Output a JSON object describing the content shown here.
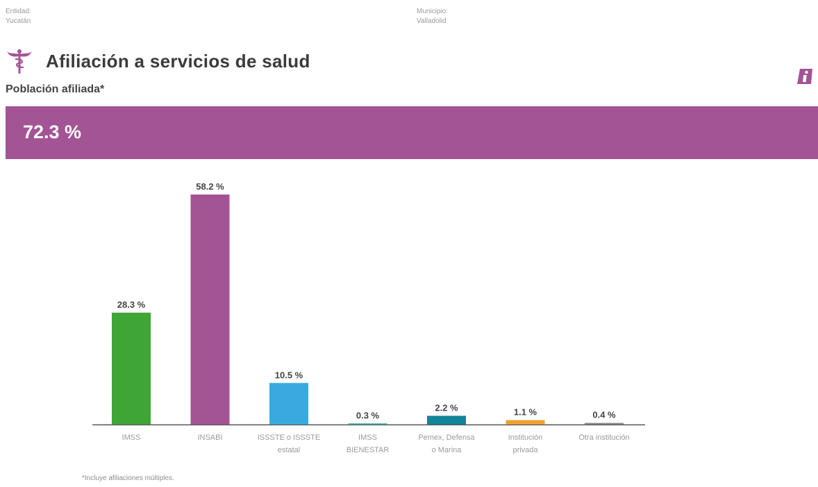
{
  "header": {
    "entidad_label": "Entidad:",
    "entidad_value": "Yucatán",
    "municipio_label": "Municipio:",
    "municipio_value": "Valladolid",
    "title": "Afiliación a servicios de salud",
    "subtitle": "Población afiliada*"
  },
  "banner": {
    "value_label": "72.3 %",
    "color": "#a35494"
  },
  "icons": {
    "title_icon": "caduceus-icon",
    "info_icon": "info-icon"
  },
  "colors": {
    "accent": "#a35494"
  },
  "chart_data": {
    "type": "bar",
    "categories": [
      [
        "IMSS"
      ],
      [
        "INSABI"
      ],
      [
        "ISSSTE o ISSSTE",
        "estatal"
      ],
      [
        "IMSS",
        "BIENESTAR"
      ],
      [
        "Pemex, Defensa",
        "o Marina"
      ],
      [
        "Institución",
        "privada"
      ],
      [
        "Otra institución"
      ]
    ],
    "values": [
      28.3,
      58.2,
      10.5,
      0.3,
      2.2,
      1.1,
      0.4
    ],
    "value_labels": [
      "28.3 %",
      "58.2 %",
      "10.5 %",
      "0.3 %",
      "2.2 %",
      "1.1 %",
      "0.4 %"
    ],
    "colors": [
      "#3fa535",
      "#a35494",
      "#3aa9e0",
      "#48b8a5",
      "#13849a",
      "#f0a030",
      "#8a8a8a"
    ],
    "ylim": [
      0,
      58.2
    ],
    "grid": false,
    "legend": "none"
  },
  "footnote": "*Incluye afiliaciones múltiples."
}
